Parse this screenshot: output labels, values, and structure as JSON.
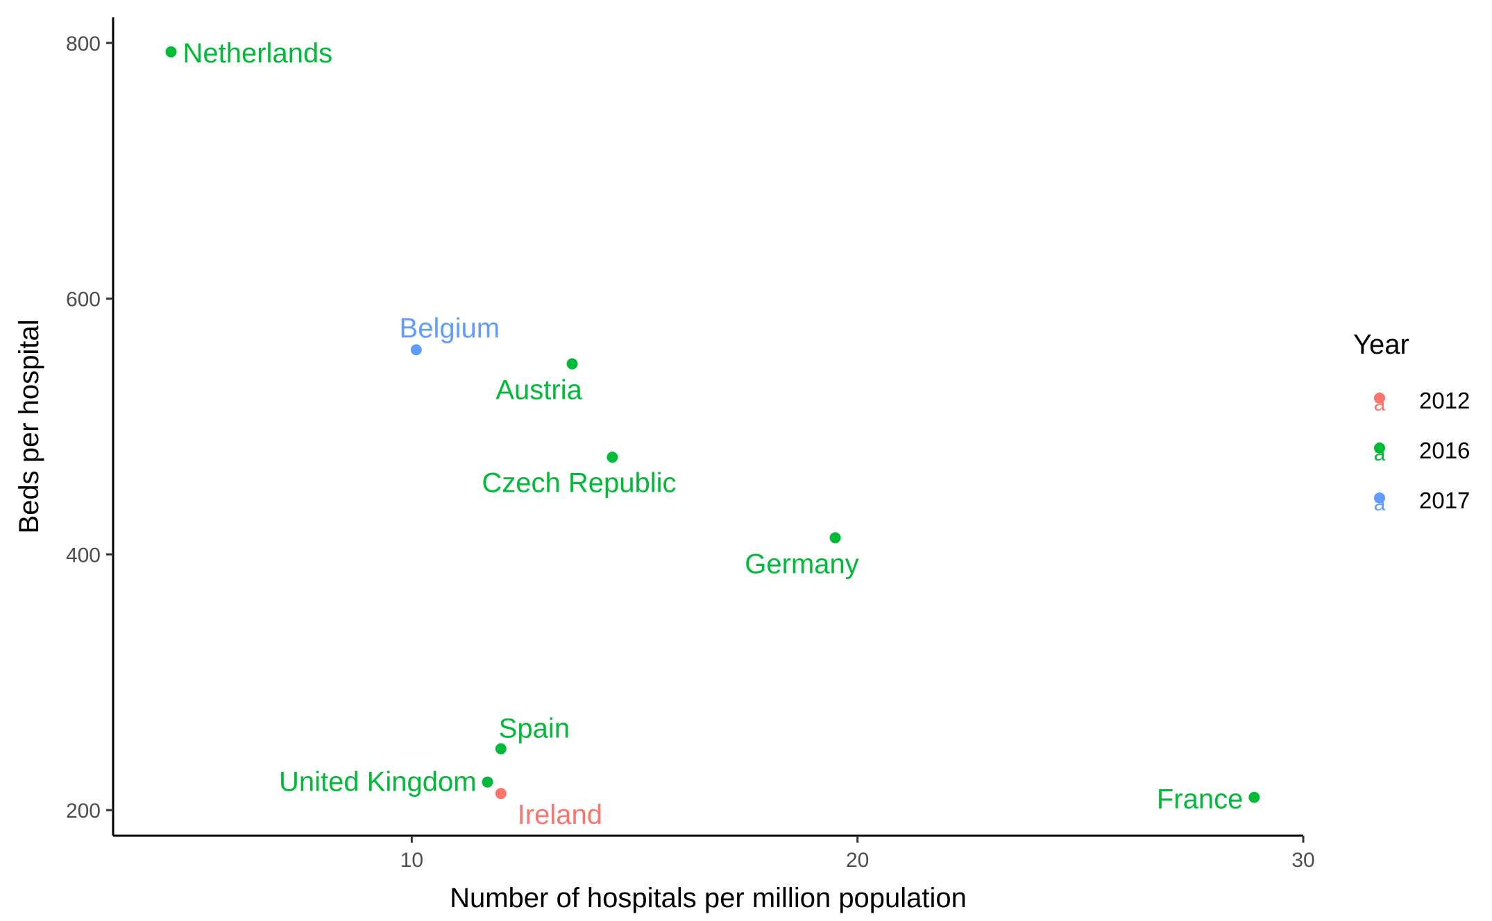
{
  "chart_data": {
    "type": "scatter",
    "xlabel": "Number of hospitals per million population",
    "ylabel": "Beds per hospital",
    "xlim": [
      3.3,
      30.0
    ],
    "ylim": [
      180,
      820
    ],
    "x_ticks": [
      10,
      20,
      30
    ],
    "y_ticks": [
      200,
      400,
      600,
      800
    ],
    "grid": false,
    "legend": {
      "title": "Year",
      "placement": "right",
      "entries": [
        {
          "name": "2012",
          "color": "#F8766D"
        },
        {
          "name": "2016",
          "color": "#00BA38"
        },
        {
          "name": "2017",
          "color": "#619CFF"
        }
      ]
    },
    "points": [
      {
        "label": "Netherlands",
        "x": 4.6,
        "y": 793,
        "year": "2016"
      },
      {
        "label": "Belgium",
        "x": 10.1,
        "y": 560,
        "year": "2017"
      },
      {
        "label": "Austria",
        "x": 13.6,
        "y": 549,
        "year": "2016"
      },
      {
        "label": "Czech Republic",
        "x": 14.5,
        "y": 476,
        "year": "2016"
      },
      {
        "label": "Germany",
        "x": 19.5,
        "y": 413,
        "year": "2016"
      },
      {
        "label": "Spain",
        "x": 12.0,
        "y": 248,
        "year": "2016"
      },
      {
        "label": "United Kingdom",
        "x": 11.7,
        "y": 222,
        "year": "2016"
      },
      {
        "label": "Ireland",
        "x": 12.0,
        "y": 213,
        "year": "2012"
      },
      {
        "label": "France",
        "x": 28.9,
        "y": 210,
        "year": "2016"
      }
    ]
  }
}
